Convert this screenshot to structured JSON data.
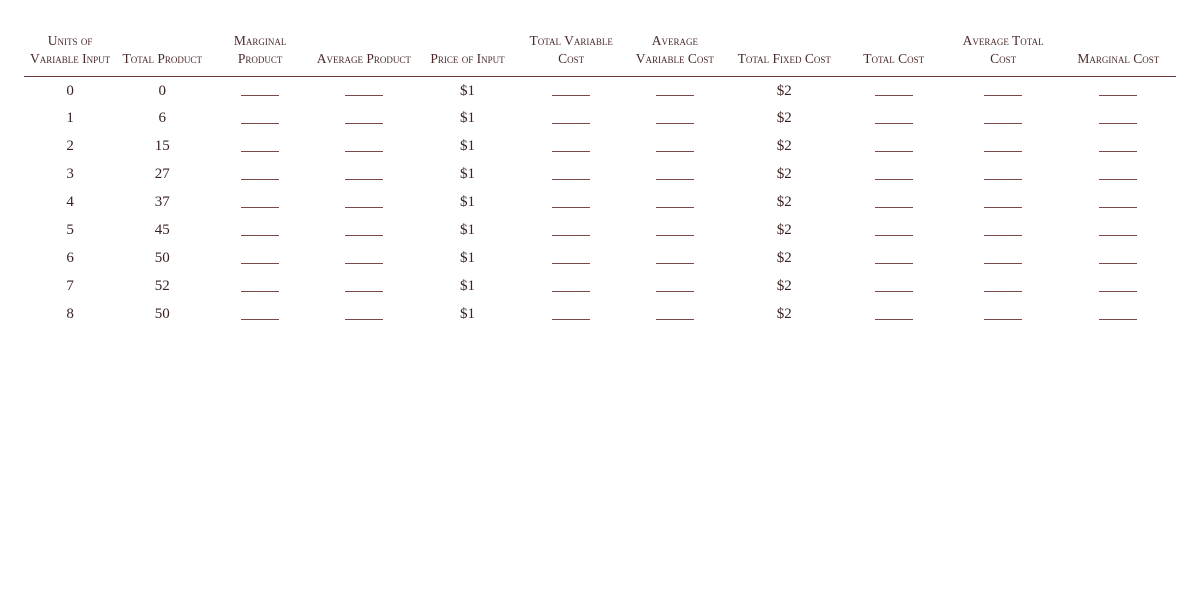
{
  "table": {
    "type": "table",
    "background_color": "#ffffff",
    "text_color": "#4a2a2a",
    "border_color": "#6a3a3a",
    "blank_line_color": "#7a4a4a",
    "header_fontsize": 13.5,
    "body_fontsize": 15,
    "font_family": "Georgia",
    "columns": [
      "Units of Variable Input",
      "Total Product",
      "Marginal Product",
      "Average Product",
      "Price of Input",
      "Total Variable Cost",
      "Average Variable Cost",
      "Total Fixed Cost",
      "Total Cost",
      "Average Total Cost",
      "Marginal Cost"
    ],
    "rows": [
      [
        "0",
        "0",
        "",
        "",
        "$1",
        "",
        "",
        "$2",
        "",
        "",
        ""
      ],
      [
        "1",
        "6",
        "",
        "",
        "$1",
        "",
        "",
        "$2",
        "",
        "",
        ""
      ],
      [
        "2",
        "15",
        "",
        "",
        "$1",
        "",
        "",
        "$2",
        "",
        "",
        ""
      ],
      [
        "3",
        "27",
        "",
        "",
        "$1",
        "",
        "",
        "$2",
        "",
        "",
        ""
      ],
      [
        "4",
        "37",
        "",
        "",
        "$1",
        "",
        "",
        "$2",
        "",
        "",
        ""
      ],
      [
        "5",
        "45",
        "",
        "",
        "$1",
        "",
        "",
        "$2",
        "",
        "",
        ""
      ],
      [
        "6",
        "50",
        "",
        "",
        "$1",
        "",
        "",
        "$2",
        "",
        "",
        ""
      ],
      [
        "7",
        "52",
        "",
        "",
        "$1",
        "",
        "",
        "$2",
        "",
        "",
        ""
      ],
      [
        "8",
        "50",
        "",
        "",
        "$1",
        "",
        "",
        "$2",
        "",
        "",
        ""
      ]
    ],
    "blank_columns": [
      2,
      3,
      5,
      6,
      8,
      9,
      10
    ]
  }
}
